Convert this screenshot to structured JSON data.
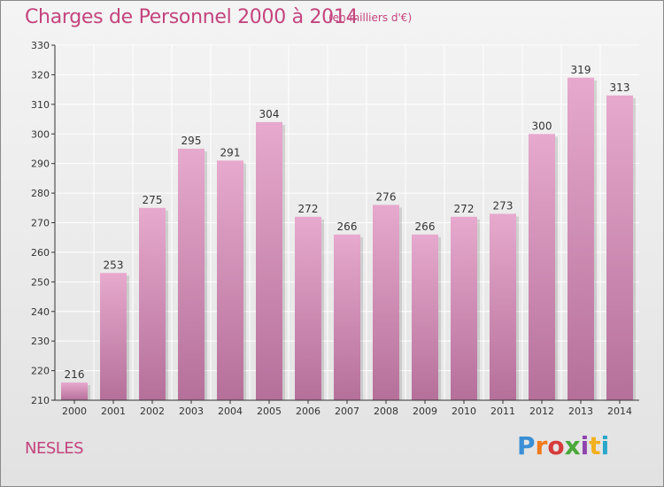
{
  "header": {
    "title": "Charges de Personnel 2000 à 2014",
    "subtitle": "(en milliers d'€)"
  },
  "footer": {
    "place": "NESLES",
    "brand": "Proxiti",
    "brand_colors": [
      "#3a8fd6",
      "#f07a1a",
      "#d63b3b",
      "#48a838",
      "#8e44ad",
      "#f2b01e",
      "#2aa6c8"
    ]
  },
  "colors": {
    "bar_top": "#e7a9cd",
    "bar_bottom": "#b5709a",
    "axis": "#333333",
    "grid": "#ffffff",
    "accent": "#c4447e"
  },
  "chart_data": {
    "type": "bar",
    "categories": [
      "2000",
      "2001",
      "2002",
      "2003",
      "2004",
      "2005",
      "2006",
      "2007",
      "2008",
      "2009",
      "2010",
      "2011",
      "2012",
      "2013",
      "2014"
    ],
    "values": [
      216,
      253,
      275,
      295,
      291,
      304,
      272,
      266,
      276,
      266,
      272,
      273,
      300,
      319,
      313
    ],
    "title": "Charges de Personnel 2000 à 2014",
    "subtitle": "(en milliers d'€)",
    "xlabel": "",
    "ylabel": "",
    "ylim": [
      210,
      330
    ],
    "yticks": [
      210,
      220,
      230,
      240,
      250,
      260,
      270,
      280,
      290,
      300,
      310,
      320,
      330
    ],
    "grid": true,
    "data_labels": true
  }
}
